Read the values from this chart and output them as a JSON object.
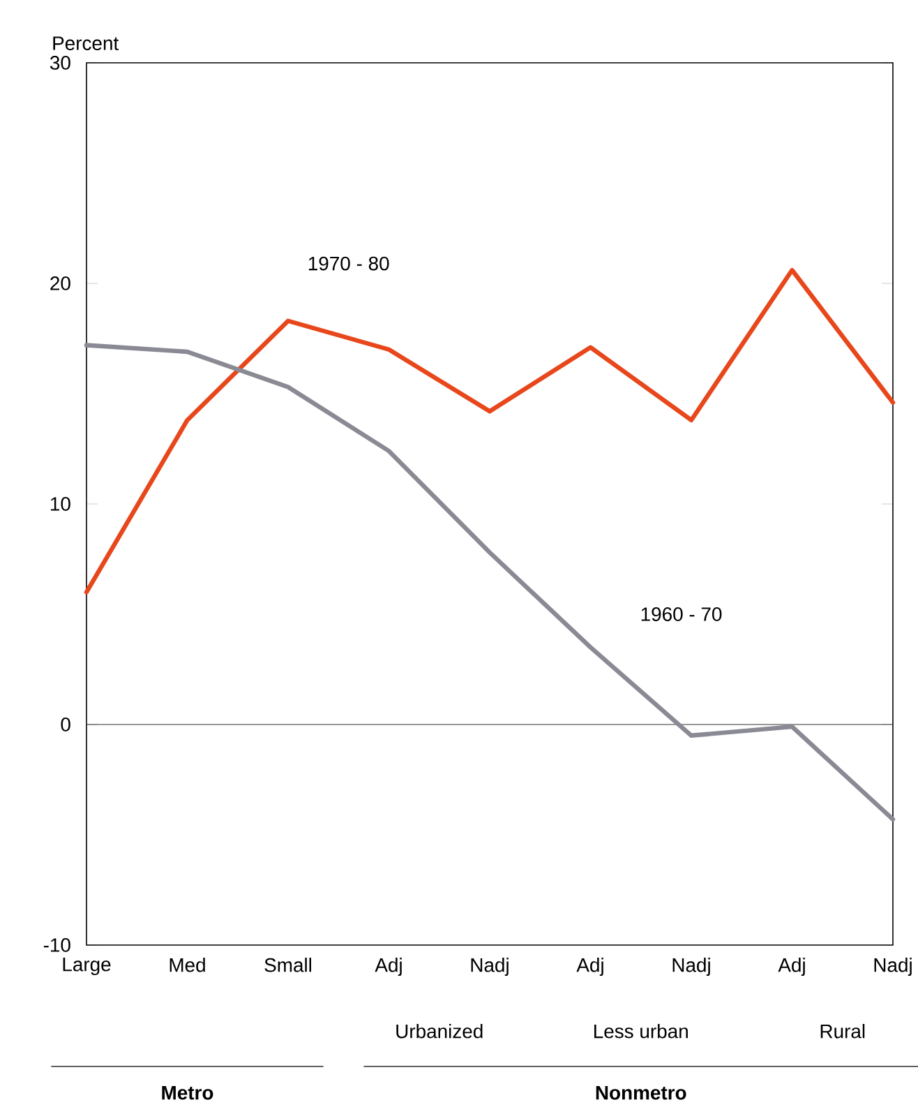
{
  "chart_data": {
    "type": "line",
    "ylabel": "Percent",
    "categories": [
      "Large",
      "Med",
      "Small",
      "Adj",
      "Nadj",
      "Adj",
      "Nadj",
      "Adj",
      "Nadj"
    ],
    "series": [
      {
        "name": "1970 - 80",
        "color": "#e8471c",
        "values": [
          6.0,
          13.8,
          18.3,
          17.0,
          14.2,
          17.1,
          13.8,
          20.6,
          14.6
        ]
      },
      {
        "name": "1960 - 70",
        "color": "#8a8a94",
        "values": [
          17.2,
          16.9,
          15.3,
          12.4,
          7.8,
          3.5,
          -0.5,
          -0.1,
          -4.3
        ]
      }
    ],
    "ylim": [
      -10,
      30
    ],
    "yticks": [
      -10,
      0,
      10,
      20,
      30
    ],
    "ref_lines": [
      {
        "axis": "y",
        "value": 0,
        "color": "#333333"
      }
    ],
    "annotations": [
      "Urbanized",
      "Less urban",
      "Rural",
      "Metro",
      "Nonmetro"
    ],
    "grid": false,
    "legend": false,
    "marker": "none",
    "line_style": "solid"
  }
}
